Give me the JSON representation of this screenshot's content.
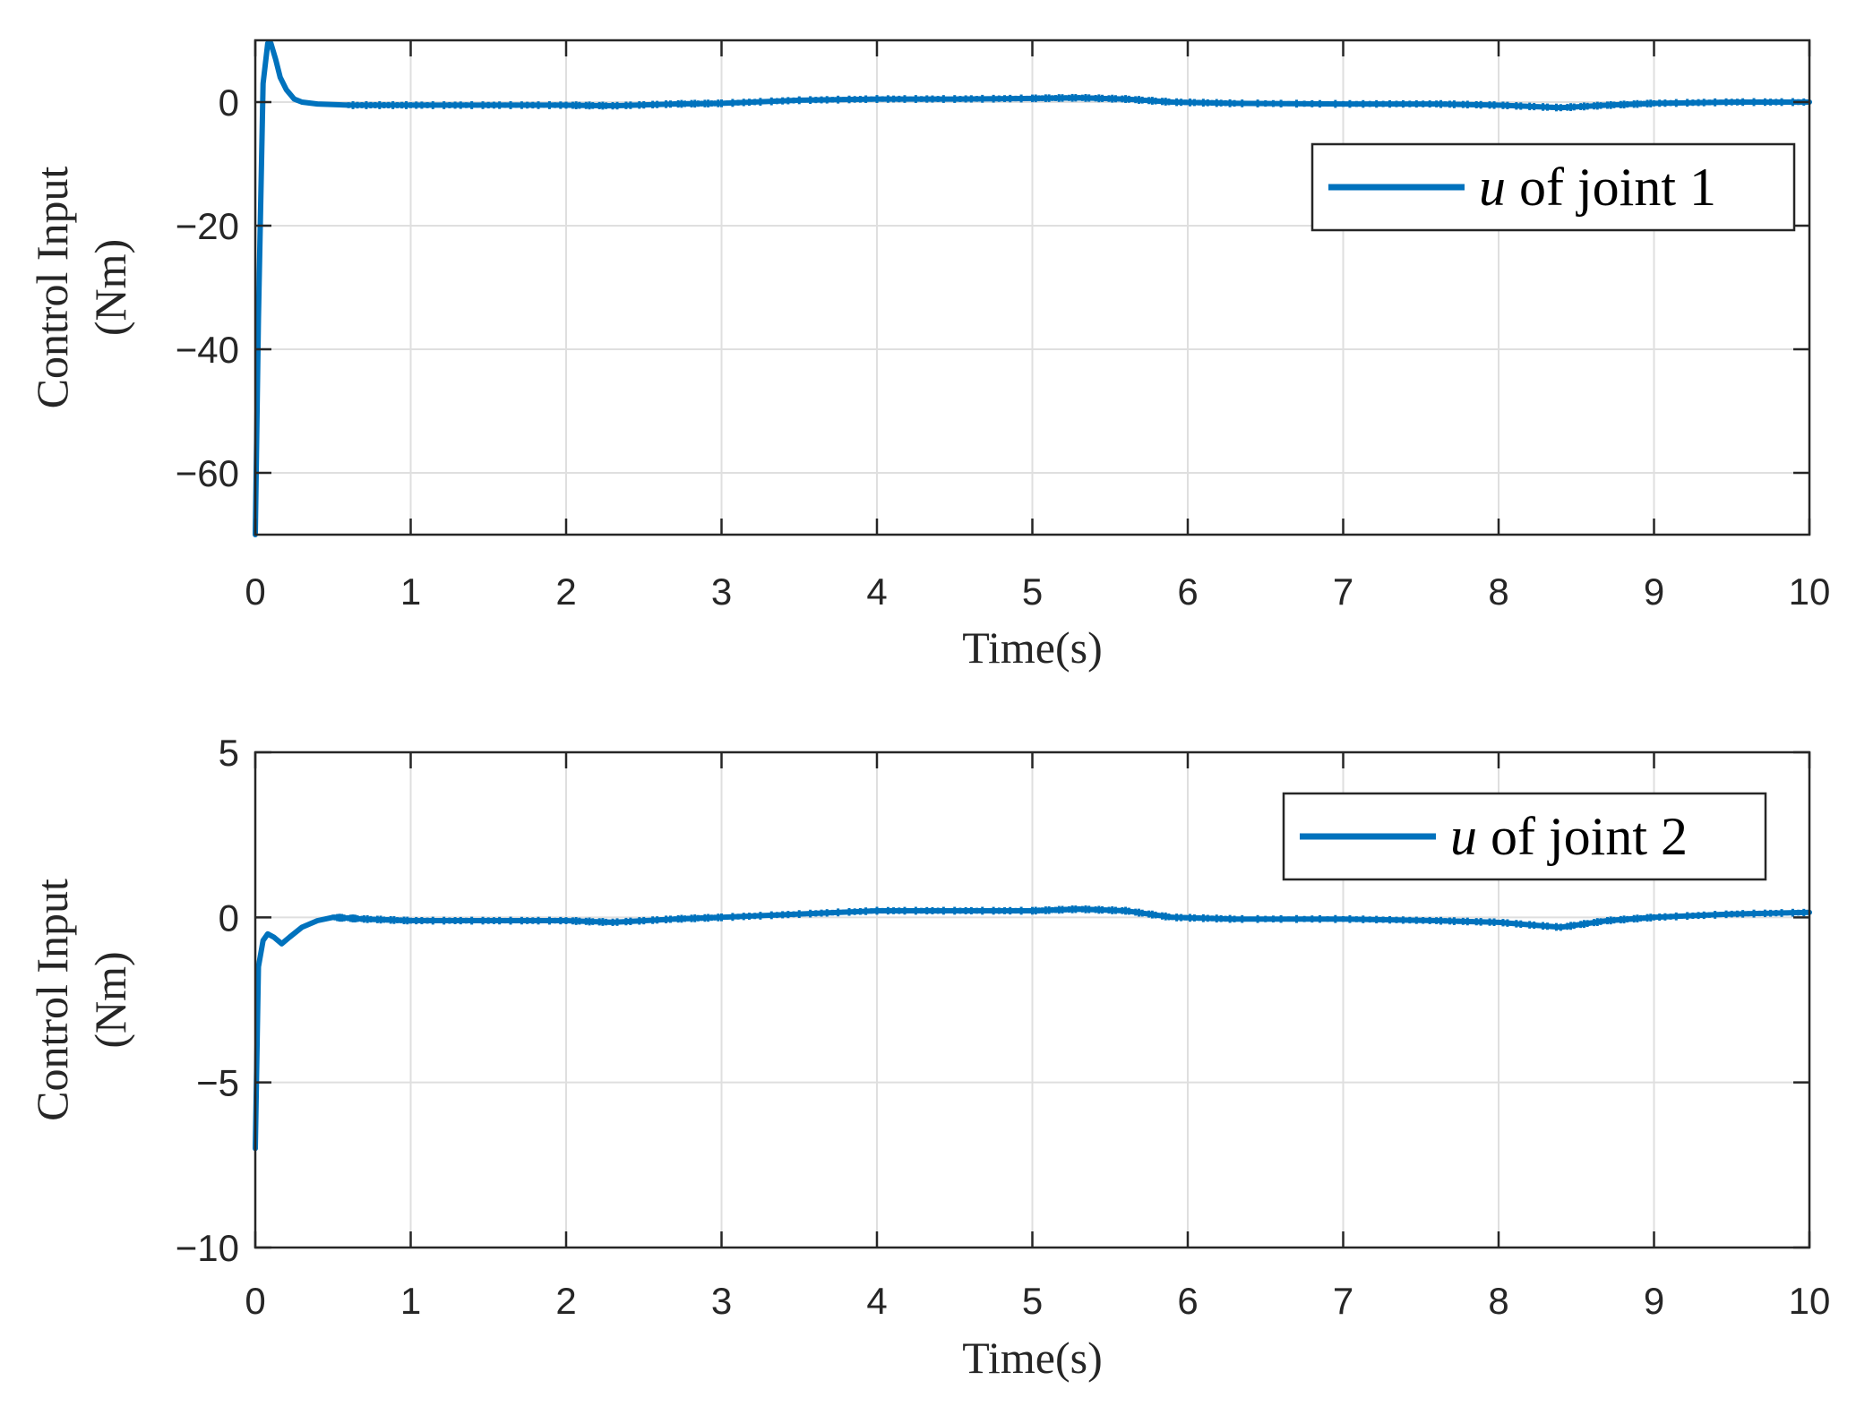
{
  "chart_data": [
    {
      "type": "line",
      "xlabel": "Time(s)",
      "ylabel_line1": "Control Input",
      "ylabel_line2": "(Nm)",
      "xlim": [
        0,
        10
      ],
      "ylim": [
        -70,
        10
      ],
      "xticks": [
        0,
        1,
        2,
        3,
        4,
        5,
        6,
        7,
        8,
        9,
        10
      ],
      "yticks": [
        -60,
        -40,
        -20,
        0
      ],
      "grid": true,
      "legend_location": "upper-right",
      "series": [
        {
          "name_symbol": "u",
          "name_rest": " of joint 1",
          "color": "#0072BD",
          "x": [
            0,
            0.02,
            0.05,
            0.08,
            0.1,
            0.13,
            0.16,
            0.2,
            0.25,
            0.3,
            0.4,
            0.6,
            1,
            1.5,
            2,
            2.3,
            2.7,
            3,
            3.5,
            4,
            4.5,
            5,
            5.3,
            5.6,
            5.9,
            6.3,
            7,
            7.6,
            8,
            8.4,
            8.7,
            9,
            9.5,
            10
          ],
          "y": [
            -70,
            -35,
            3,
            9.5,
            9.5,
            7,
            4,
            2,
            0.5,
            0,
            -0.3,
            -0.5,
            -0.5,
            -0.5,
            -0.5,
            -0.6,
            -0.3,
            -0.2,
            0.3,
            0.5,
            0.5,
            0.6,
            0.7,
            0.5,
            0,
            -0.2,
            -0.3,
            -0.3,
            -0.5,
            -0.9,
            -0.5,
            -0.2,
            0,
            0
          ]
        }
      ]
    },
    {
      "type": "line",
      "xlabel": "Time(s)",
      "ylabel_line1": "Control Input",
      "ylabel_line2": "(Nm)",
      "xlim": [
        0,
        10
      ],
      "ylim": [
        -10,
        5
      ],
      "xticks": [
        0,
        1,
        2,
        3,
        4,
        5,
        6,
        7,
        8,
        9,
        10
      ],
      "yticks": [
        -10,
        -5,
        0,
        5
      ],
      "grid": true,
      "legend_location": "upper-right",
      "series": [
        {
          "name_symbol": "u",
          "name_rest": " of joint 2",
          "color": "#0072BD",
          "x": [
            0,
            0.02,
            0.05,
            0.08,
            0.12,
            0.17,
            0.22,
            0.3,
            0.4,
            0.5,
            0.7,
            1,
            1.5,
            2,
            2.3,
            2.7,
            3,
            3.5,
            4,
            4.5,
            5,
            5.3,
            5.6,
            5.9,
            6.3,
            7,
            7.6,
            8,
            8.4,
            8.7,
            9,
            9.5,
            10
          ],
          "y": [
            -7,
            -1.5,
            -0.7,
            -0.5,
            -0.6,
            -0.8,
            -0.6,
            -0.3,
            -0.1,
            0,
            -0.05,
            -0.1,
            -0.1,
            -0.1,
            -0.15,
            -0.05,
            0,
            0.1,
            0.2,
            0.2,
            0.2,
            0.25,
            0.2,
            0,
            -0.05,
            -0.05,
            -0.1,
            -0.15,
            -0.3,
            -0.1,
            0,
            0.1,
            0.15
          ]
        }
      ]
    }
  ]
}
